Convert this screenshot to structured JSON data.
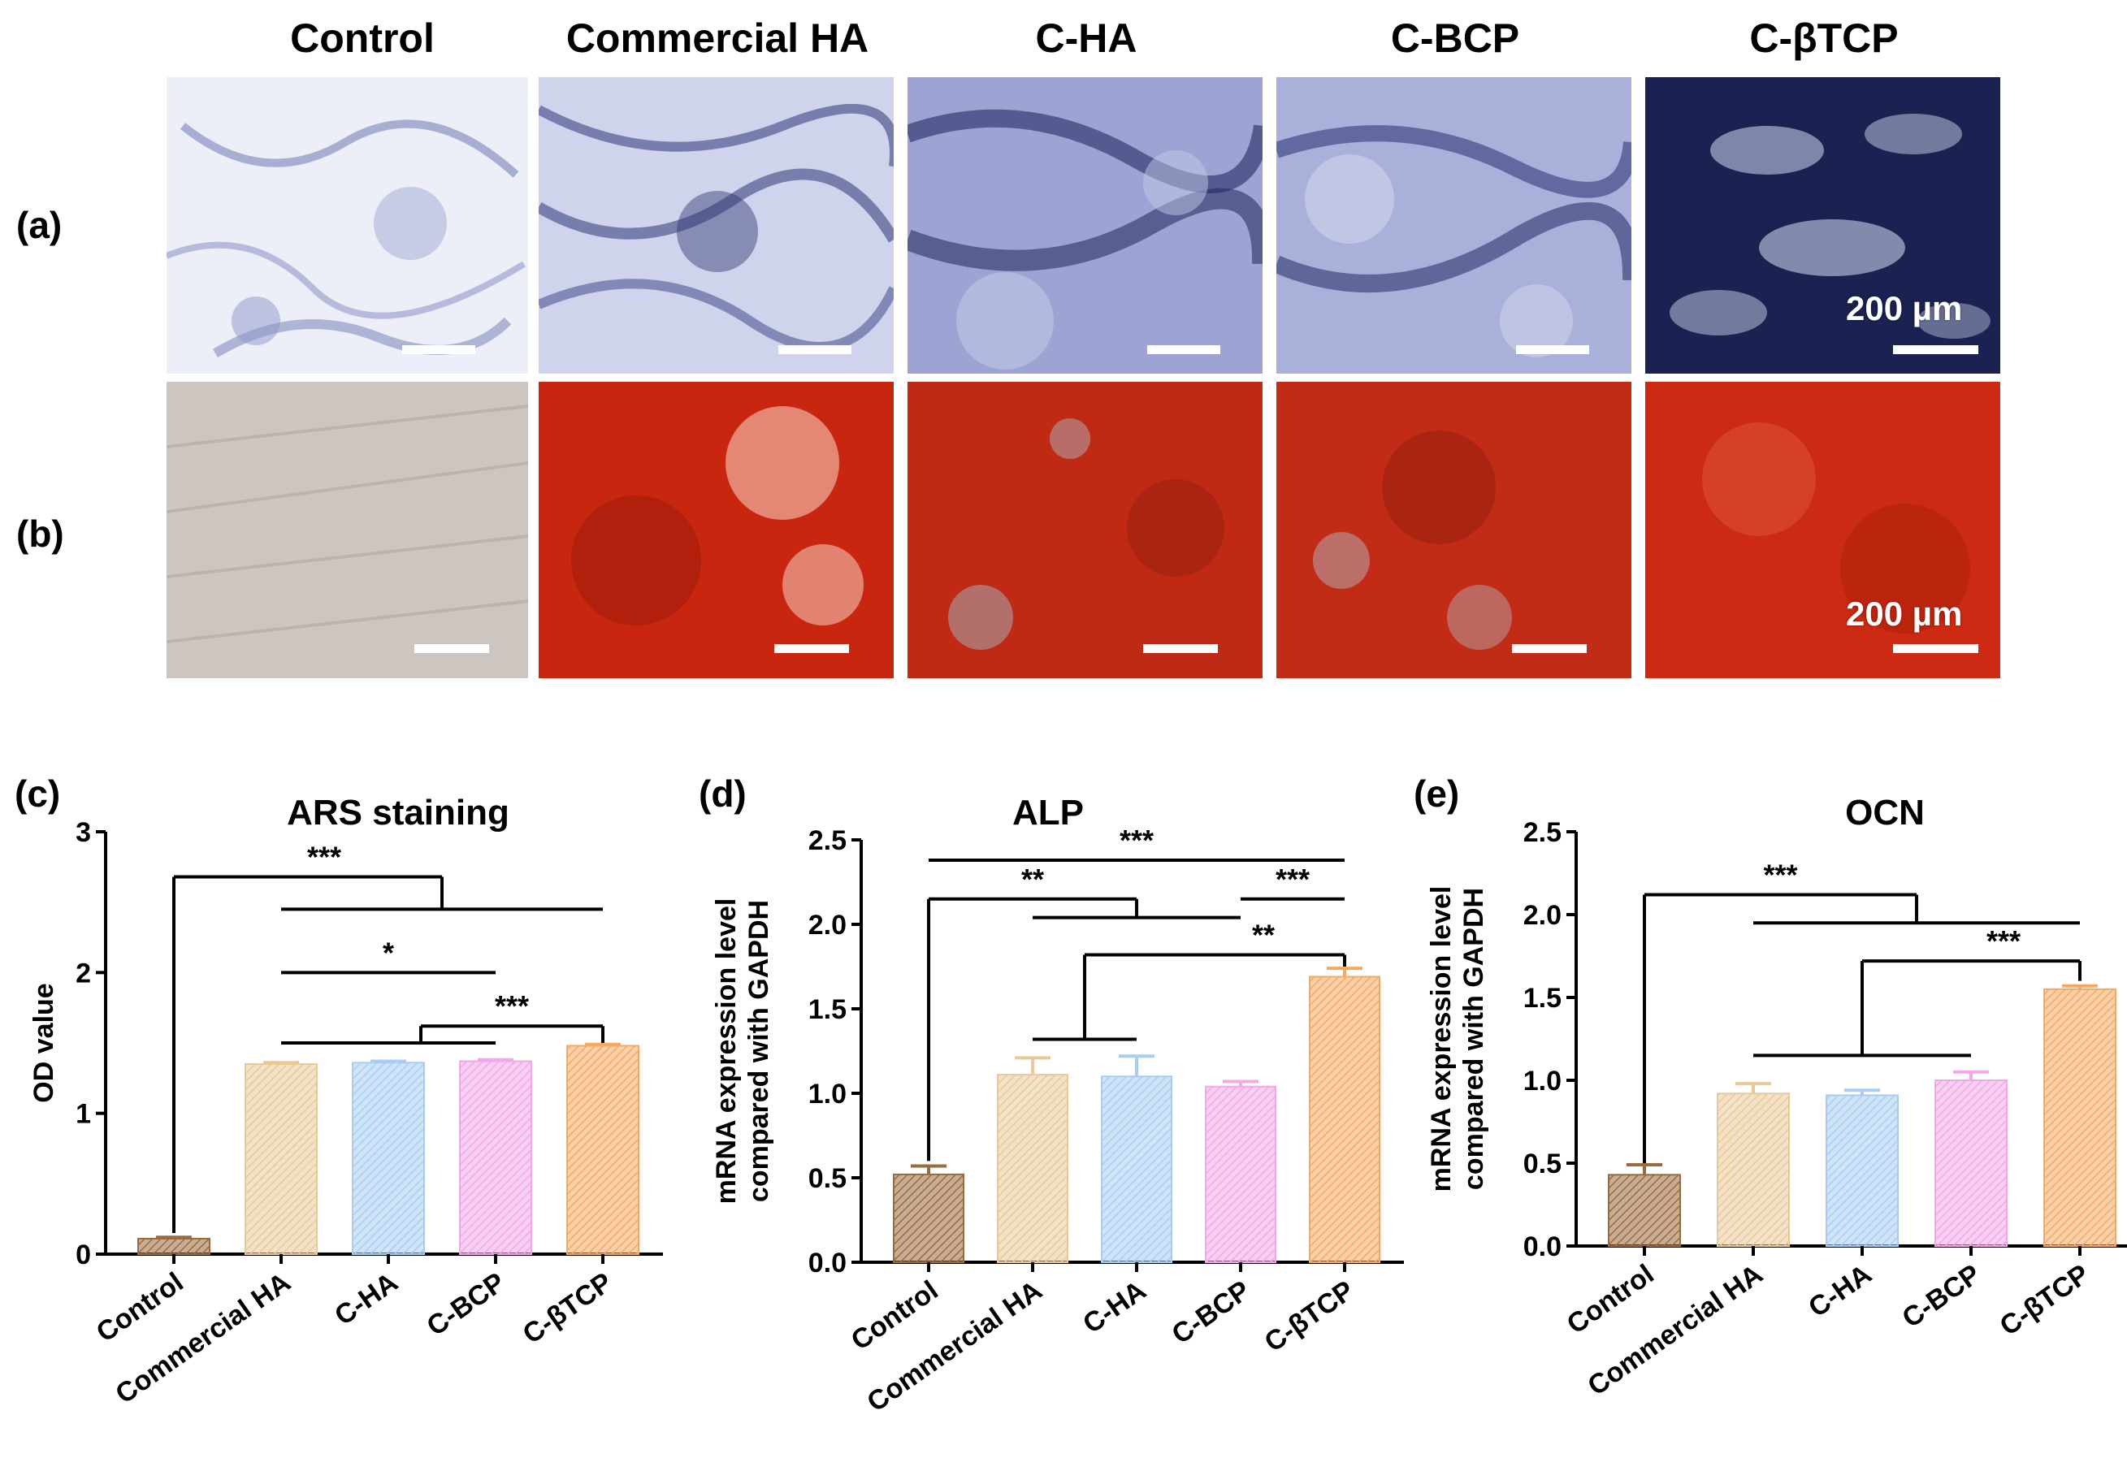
{
  "columns": [
    "Control",
    "Commercial HA",
    "C-HA",
    "C-BCP",
    "C-βTCP"
  ],
  "rows": [
    {
      "label": "(a)",
      "stain": "ALP",
      "scale_text": "200 µm"
    },
    {
      "label": "(b)",
      "stain": "ARS",
      "scale_text": "200 µm"
    }
  ],
  "colors": {
    "control": "#9b6a3f",
    "commercial_ha": "#e8c99a",
    "c_ha": "#a9cdf2",
    "c_bcp": "#f2a8e6",
    "c_btcp": "#f3a962",
    "alp_light": "#e4e6f6",
    "alp_dark": "#1c2250",
    "ars_red": "#c82a16",
    "ars_light": "#c9c2bc"
  },
  "chart_data": [
    {
      "panel": "(c)",
      "type": "bar",
      "title": "ARS staining",
      "ylabel": "OD value",
      "xlabel": "",
      "categories": [
        "Control",
        "Commercial HA",
        "C-HA",
        "C-BCP",
        "C-βTCP"
      ],
      "values": [
        0.11,
        1.35,
        1.36,
        1.37,
        1.48
      ],
      "errors": [
        0.01,
        0.01,
        0.01,
        0.01,
        0.01
      ],
      "ylim": [
        0,
        3
      ],
      "yticks": [
        0,
        1,
        2,
        3
      ],
      "significance": [
        "***",
        "*",
        "***"
      ]
    },
    {
      "panel": "(d)",
      "type": "bar",
      "title": "ALP",
      "ylabel": [
        "mRNA expression level",
        "compared with GAPDH"
      ],
      "xlabel": "",
      "categories": [
        "Control",
        "Commercial HA",
        "C-HA",
        "C-BCP",
        "C-βTCP"
      ],
      "values": [
        0.52,
        1.11,
        1.1,
        1.04,
        1.69
      ],
      "errors": [
        0.05,
        0.1,
        0.12,
        0.03,
        0.05
      ],
      "ylim": [
        0,
        2.5
      ],
      "yticks": [
        "0.0",
        "0.5",
        "1.0",
        "1.5",
        "2.0",
        "2.5"
      ],
      "significance": [
        "***",
        "**",
        "***",
        "**"
      ]
    },
    {
      "panel": "(e)",
      "type": "bar",
      "title": "OCN",
      "ylabel": [
        "mRNA expression level",
        "compared with GAPDH"
      ],
      "xlabel": "",
      "categories": [
        "Control",
        "Commercial HA",
        "C-HA",
        "C-BCP",
        "C-βTCP"
      ],
      "values": [
        0.43,
        0.92,
        0.91,
        1.0,
        1.55
      ],
      "errors": [
        0.06,
        0.06,
        0.03,
        0.05,
        0.02
      ],
      "ylim": [
        0,
        2.5
      ],
      "yticks": [
        "0.0",
        "0.5",
        "1.0",
        "1.5",
        "2.0",
        "2.5"
      ],
      "significance": [
        "***",
        "***"
      ]
    }
  ]
}
